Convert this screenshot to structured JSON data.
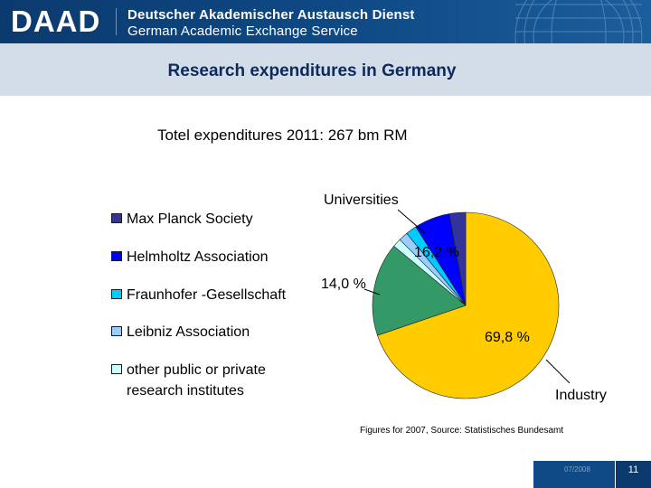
{
  "header": {
    "logo": "DAAD",
    "org_name_de": "Deutscher Akademischer Austausch Dienst",
    "org_name_en": "German Academic Exchange Service"
  },
  "page_title": "Research expenditures in Germany",
  "footer": {
    "source": "Figures for 2007, Source: Statistisches Bundesamt",
    "date": "07/2008",
    "page_number": "11"
  },
  "colors": {
    "header_blue": "#0f4a86",
    "title_band": "#d3dde8",
    "industry": "#ffcc00",
    "universities": "#339966",
    "max_planck": "#333399",
    "helmholtz": "#0000ff",
    "fraunhofer": "#00ccff",
    "leibniz": "#99ccff",
    "other_institutes": "#ccffff"
  },
  "chart_data": {
    "type": "pie",
    "title": "Totel expenditures 2011:  267 bm RM",
    "legend_position": "left",
    "slices": [
      {
        "name": "Industry",
        "value": 69.8,
        "label": "69,8 %",
        "color": "#ffcc00"
      },
      {
        "name": "Universities",
        "value": 16.2,
        "label": "16,2 %",
        "color": "#339966"
      },
      {
        "name": "other public or private research institutes",
        "value": 1.5,
        "color": "#ccffff"
      },
      {
        "name": "Leibniz Association",
        "value": 1.6,
        "color": "#99ccff"
      },
      {
        "name": "Fraunhofer -Gesellschaft",
        "value": 1.9,
        "color": "#00ccff"
      },
      {
        "name": "Helmholtz Association",
        "value": 6.2,
        "color": "#0000ff"
      },
      {
        "name": "Max Planck Society",
        "value": 2.8,
        "color": "#333399"
      }
    ],
    "group_annotation": {
      "label": "14,0 %"
    },
    "legend": [
      {
        "label": "Max Planck Society",
        "color": "#333399"
      },
      {
        "label": "Helmholtz Association",
        "color": "#0000ff"
      },
      {
        "label": "Fraunhofer -Gesellschaft",
        "color": "#00ccff"
      },
      {
        "label": "Leibniz Association",
        "color": "#99ccff"
      },
      {
        "label": "other public or private",
        "label2": "research institutes",
        "color": "#ccffff"
      }
    ]
  }
}
